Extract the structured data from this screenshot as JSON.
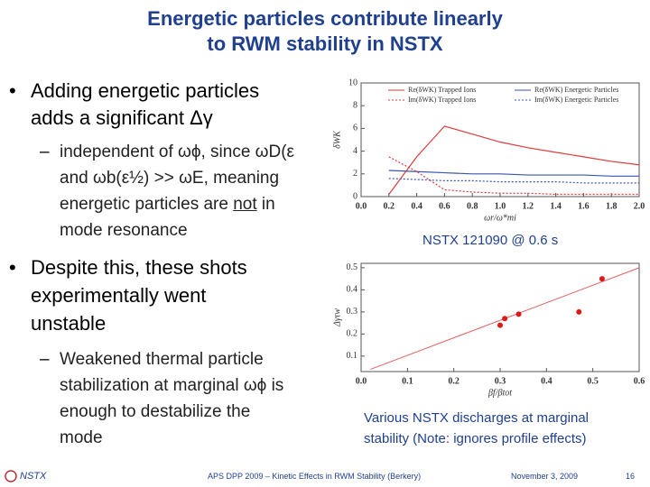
{
  "slide": {
    "title": [
      "Energetic particles contribute linearly",
      "to RWM stability in NSTX"
    ],
    "bullet_1": [
      "Adding energetic particles",
      "adds a significant Δγ"
    ],
    "sub_bullet_1": [
      [
        "independent of ωϕ, since ωD(ε"
      ],
      [
        "and ωb(ε½) >> ωE, meaning"
      ],
      [
        "energetic particles are ",
        "not",
        " in"
      ],
      [
        "mode resonance"
      ]
    ],
    "bullet_2": [
      "Despite this, these shots",
      "experimentally went",
      "unstable"
    ],
    "sub_bullet_2": [
      "Weakened thermal particle",
      "stabilization at marginal ωϕ is",
      "enough to destabilize the",
      "mode"
    ],
    "caption_1": "NSTX 121090 @ 0.6 s",
    "caption_2": [
      "Various NSTX discharges at marginal",
      "stability (Note: ignores profile effects)"
    ],
    "footer": {
      "logo": "NSTX",
      "center": "APS DPP 2009 – Kinetic Effects in RWM Stability (Berkery)",
      "date": "November 3, 2009",
      "page": "16"
    }
  },
  "chart_data": [
    {
      "type": "line",
      "xlabel": "ωr/ω*mi",
      "ylabel": "δWK",
      "x": [
        0.2,
        0.4,
        0.6,
        0.8,
        1.0,
        1.2,
        1.4,
        1.6,
        1.8,
        2.0
      ],
      "series": [
        {
          "name": "Re(δWK) Trapped Ions",
          "color": "#e03a3a",
          "dash": false,
          "values": [
            0.2,
            3.5,
            6.2,
            5.5,
            4.8,
            4.3,
            3.9,
            3.5,
            3.1,
            2.8
          ]
        },
        {
          "name": "Re(δWK) Energetic Particles",
          "color": "#3a55b0",
          "dash": false,
          "values": [
            2.3,
            2.2,
            2.1,
            2.0,
            2.0,
            1.9,
            1.9,
            1.9,
            1.8,
            1.8
          ]
        },
        {
          "name": "Im(δWK) Trapped Ions",
          "color": "#e03a3a",
          "dash": true,
          "values": [
            3.5,
            2.2,
            0.6,
            0.4,
            0.3,
            0.3,
            0.2,
            0.2,
            0.2,
            0.2
          ]
        },
        {
          "name": "Im(δWK) Energetic Particles",
          "color": "#3a55b0",
          "dash": true,
          "values": [
            1.6,
            1.5,
            1.4,
            1.4,
            1.3,
            1.3,
            1.3,
            1.2,
            1.2,
            1.2
          ]
        }
      ],
      "xlim": [
        0,
        2.0
      ],
      "xticks": [
        {
          "value": 0,
          "label": "0.0"
        },
        0.2,
        0.4,
        0.6,
        0.8,
        {
          "value": 1,
          "label": "1.0"
        },
        1.2,
        1.4,
        1.6,
        1.8,
        {
          "value": 2,
          "label": "2.0"
        }
      ],
      "ylim": [
        0,
        10
      ],
      "yticks": [
        0,
        2,
        4,
        6,
        8,
        10
      ]
    },
    {
      "type": "scatter",
      "xlabel": "βf/βtot",
      "ylabel": "Δγτw",
      "x": [
        0.3,
        0.31,
        0.34,
        0.47,
        0.52
      ],
      "values": [
        0.24,
        0.27,
        0.29,
        0.3,
        0.45
      ],
      "color": "#e01818",
      "fit": {
        "x": [
          0.02,
          0.6
        ],
        "values": [
          0.04,
          0.5
        ],
        "color": "#e06060"
      },
      "xlim": [
        0,
        0.6
      ],
      "xticks": [
        {
          "value": 0,
          "label": "0.0"
        },
        0.1,
        0.2,
        0.3,
        0.4,
        0.5,
        0.6
      ],
      "ylim": [
        0.03,
        0.52
      ],
      "yticks": [
        0.1,
        0.2,
        0.3,
        0.4,
        0.5
      ]
    }
  ]
}
